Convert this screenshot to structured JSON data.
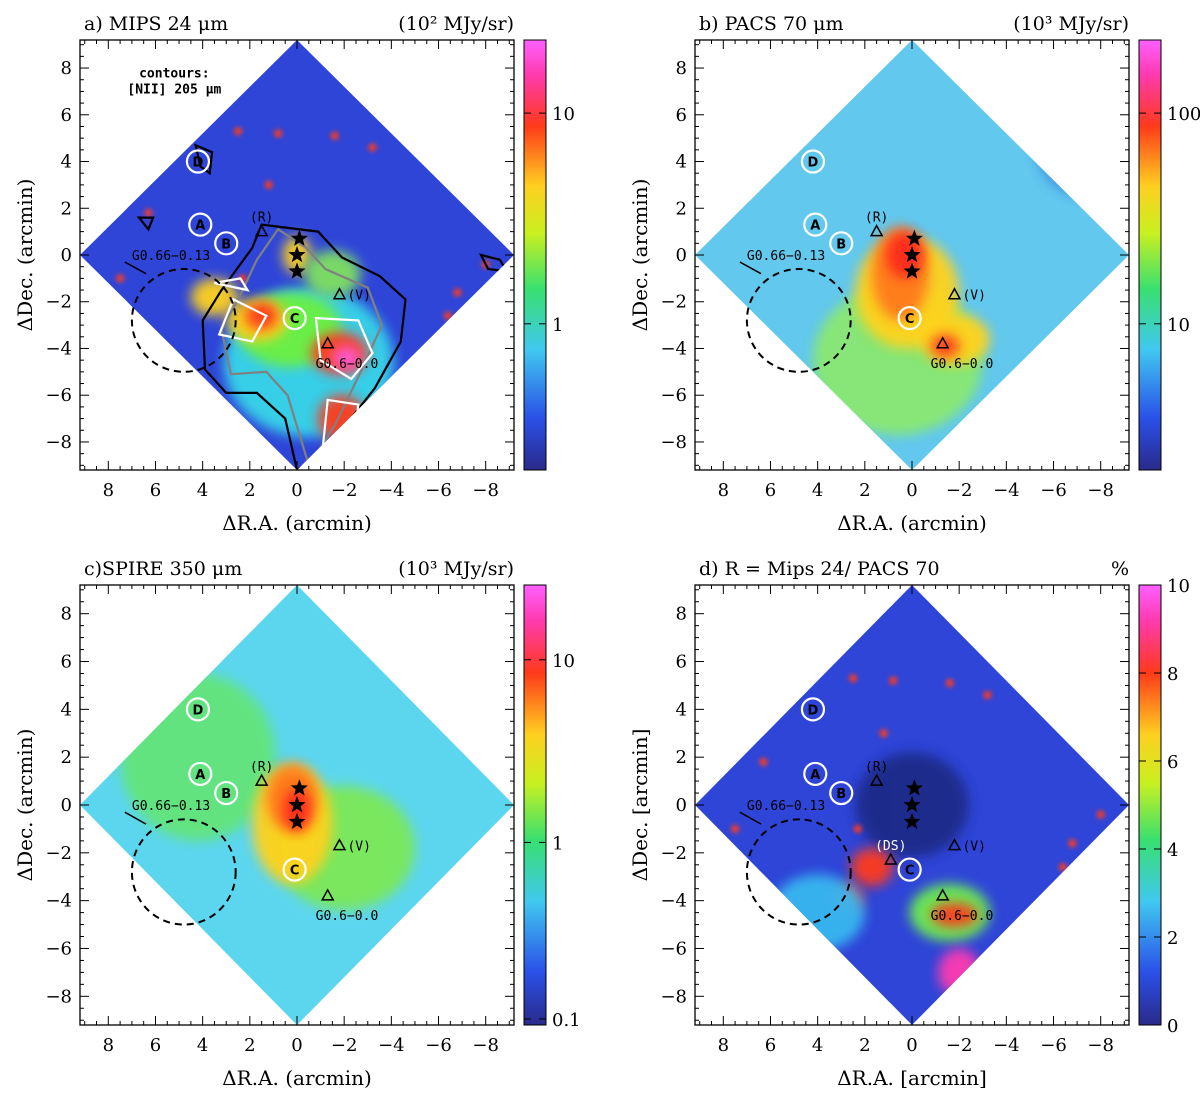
{
  "chart_data": [
    {
      "type": "heatmap",
      "panel": "a",
      "title": "a)  MIPS 24 μm",
      "unit": "(10² MJy/sr)",
      "xlabel": "ΔR.A. (arcmin)",
      "ylabel": "ΔDec. (arcmin)",
      "xlim": [
        9.2,
        -9.2
      ],
      "ylim": [
        -9.2,
        9.2
      ],
      "xticks": [
        8,
        6,
        4,
        2,
        0,
        -2,
        -4,
        -6,
        -8
      ],
      "yticks": [
        8,
        6,
        4,
        2,
        0,
        -2,
        -4,
        -6,
        -8
      ],
      "colorbar": {
        "scale": "log",
        "ticks": [
          "10",
          "1"
        ]
      },
      "annotation": "contours:\n[NII] 205 μm",
      "circles": [
        {
          "label": "D",
          "x": 4.2,
          "y": 4.0
        },
        {
          "label": "A",
          "x": 4.1,
          "y": 1.3
        },
        {
          "label": "B",
          "x": 3.0,
          "y": 0.5
        },
        {
          "label": "C",
          "x": 0.1,
          "y": -2.7
        }
      ],
      "stars": [
        {
          "x": -0.1,
          "y": 0.7
        },
        {
          "x": 0.0,
          "y": 0.0
        },
        {
          "x": 0.0,
          "y": -0.7
        }
      ],
      "triangles": [
        {
          "label": "(R)",
          "x": 1.5,
          "y": 1.0
        },
        {
          "label": "(V)",
          "x": -1.8,
          "y": -1.7
        },
        {
          "label": "G0.6−0.0",
          "x": -1.3,
          "y": -3.8
        }
      ],
      "ring": {
        "label": "G0.66−0.13",
        "x": 4.8,
        "y": -2.8,
        "r": 2.2
      }
    },
    {
      "type": "heatmap",
      "panel": "b",
      "title": "b)  PACS 70 μm",
      "unit": "(10³ MJy/sr)",
      "xlabel": "ΔR.A. (arcmin)",
      "ylabel": "ΔDec. (arcmin)",
      "xlim": [
        9.2,
        -9.2
      ],
      "ylim": [
        -9.2,
        9.2
      ],
      "xticks": [
        8,
        6,
        4,
        2,
        0,
        -2,
        -4,
        -6,
        -8
      ],
      "yticks": [
        8,
        6,
        4,
        2,
        0,
        -2,
        -4,
        -6,
        -8
      ],
      "colorbar": {
        "scale": "log",
        "ticks": [
          "100",
          "10"
        ]
      },
      "circles": [
        {
          "label": "D",
          "x": 4.2,
          "y": 4.0
        },
        {
          "label": "A",
          "x": 4.1,
          "y": 1.3
        },
        {
          "label": "B",
          "x": 3.0,
          "y": 0.5
        },
        {
          "label": "C",
          "x": 0.1,
          "y": -2.7
        }
      ],
      "stars": [
        {
          "x": -0.1,
          "y": 0.7
        },
        {
          "x": 0.0,
          "y": 0.0
        },
        {
          "x": 0.0,
          "y": -0.7
        }
      ],
      "triangles": [
        {
          "label": "(R)",
          "x": 1.5,
          "y": 1.0
        },
        {
          "label": "(V)",
          "x": -1.8,
          "y": -1.7
        },
        {
          "label": "G0.6−0.0",
          "x": -1.3,
          "y": -3.8
        }
      ],
      "ring": {
        "label": "G0.66−0.13",
        "x": 4.8,
        "y": -2.8,
        "r": 2.2
      }
    },
    {
      "type": "heatmap",
      "panel": "c",
      "title": "c)SPIRE 350 μm",
      "unit": "(10³ MJy/sr)",
      "xlabel": "ΔR.A. (arcmin)",
      "ylabel": "ΔDec. (arcmin)",
      "xlim": [
        9.2,
        -9.2
      ],
      "ylim": [
        -9.2,
        9.2
      ],
      "xticks": [
        8,
        6,
        4,
        2,
        0,
        -2,
        -4,
        -6,
        -8
      ],
      "yticks": [
        8,
        6,
        4,
        2,
        0,
        -2,
        -4,
        -6,
        -8
      ],
      "colorbar": {
        "scale": "log",
        "ticks": [
          "10",
          "1",
          "0.1"
        ]
      },
      "circles": [
        {
          "label": "D",
          "x": 4.2,
          "y": 4.0
        },
        {
          "label": "A",
          "x": 4.1,
          "y": 1.3
        },
        {
          "label": "B",
          "x": 3.0,
          "y": 0.5
        },
        {
          "label": "C",
          "x": 0.1,
          "y": -2.7
        }
      ],
      "stars": [
        {
          "x": -0.1,
          "y": 0.7
        },
        {
          "x": 0.0,
          "y": 0.0
        },
        {
          "x": 0.0,
          "y": -0.7
        }
      ],
      "triangles": [
        {
          "label": "(R)",
          "x": 1.5,
          "y": 1.0
        },
        {
          "label": "(V)",
          "x": -1.8,
          "y": -1.7
        },
        {
          "label": "G0.6−0.0",
          "x": -1.3,
          "y": -3.8
        }
      ],
      "ring": {
        "label": "G0.66−0.13",
        "x": 4.8,
        "y": -2.8,
        "r": 2.2
      }
    },
    {
      "type": "heatmap",
      "panel": "d",
      "title": "d)    R = Mips 24/ PACS 70",
      "unit": "%",
      "xlabel": "ΔR.A. [arcmin]",
      "ylabel": "ΔDec. [arcmin]",
      "xlim": [
        9.2,
        -9.2
      ],
      "ylim": [
        -9.2,
        9.2
      ],
      "xticks": [
        8,
        6,
        4,
        2,
        0,
        -2,
        -4,
        -6,
        -8
      ],
      "yticks": [
        8,
        6,
        4,
        2,
        0,
        -2,
        -4,
        -6,
        -8
      ],
      "colorbar": {
        "scale": "linear",
        "ticks": [
          "10",
          "8",
          "6",
          "4",
          "2",
          "0"
        ]
      },
      "circles": [
        {
          "label": "D",
          "x": 4.2,
          "y": 4.0
        },
        {
          "label": "A",
          "x": 4.1,
          "y": 1.3
        },
        {
          "label": "B",
          "x": 3.0,
          "y": 0.5
        },
        {
          "label": "C",
          "x": 0.1,
          "y": -2.7
        }
      ],
      "stars": [
        {
          "x": -0.1,
          "y": 0.7
        },
        {
          "x": 0.0,
          "y": 0.0
        },
        {
          "x": 0.0,
          "y": -0.7
        }
      ],
      "triangles": [
        {
          "label": "(R)",
          "x": 1.5,
          "y": 1.0
        },
        {
          "label": "(V)",
          "x": -1.8,
          "y": -1.7
        },
        {
          "label": "G0.6−0.0",
          "x": -1.3,
          "y": -3.8
        },
        {
          "label": "(DS)",
          "x": 0.9,
          "y": -2.3
        }
      ],
      "ring": {
        "label": "G0.66−0.13",
        "x": 4.8,
        "y": -2.8,
        "r": 2.2
      }
    }
  ]
}
